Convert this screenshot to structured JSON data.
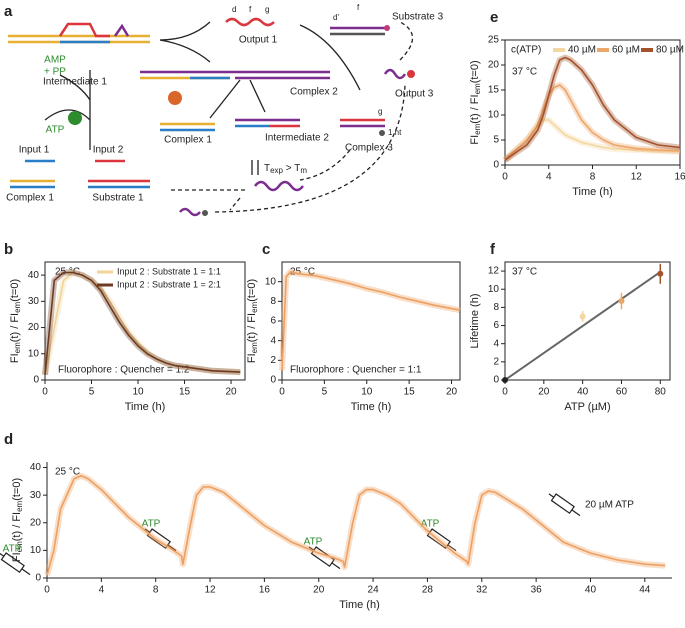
{
  "diagram": {
    "label": "a",
    "labels": [
      "Intermediate 1",
      "Output 1",
      "d",
      "f",
      "g",
      "Substrate 3",
      "d'",
      "f",
      "Output 3",
      "Complex 2",
      "AMP",
      "+ PP",
      "ATP",
      "Complex 1",
      "Intermediate 2",
      "Complex 3",
      "g",
      "1 nt",
      "Input 1",
      "Input 2",
      "Complex 1",
      "Substrate 1"
    ],
    "temperature_parts": [
      "T",
      "exp",
      " > T",
      "m"
    ]
  },
  "chart_data": [
    {
      "type": "line",
      "label": "b",
      "xlabel": "Time (h)",
      "ylabel_parts": [
        "FI",
        "em",
        "(t) / FI",
        "em",
        "(t=0)"
      ],
      "annotations": [
        "25 °C",
        "Fluorophore : Quencher = 1:2"
      ],
      "x": [
        0,
        1,
        2,
        3,
        4,
        5,
        6,
        7,
        8,
        9,
        10,
        11,
        12,
        13,
        14,
        16,
        18,
        21
      ],
      "series": [
        {
          "name": "Input 2 : Substrate 1 = 1:1",
          "color": "#f0d49a",
          "values": [
            2,
            20,
            38,
            41,
            40,
            38,
            35,
            30,
            24,
            18,
            14,
            10.5,
            8,
            6.5,
            5.5,
            4.5,
            3.5,
            3
          ]
        },
        {
          "name": "Input 2 : Substrate 1 = 2:1",
          "color": "#6e3b22",
          "values": [
            2,
            38,
            41,
            41,
            40,
            38,
            34,
            28,
            22,
            17,
            13,
            10,
            8,
            6.5,
            5.5,
            4.5,
            3.5,
            3
          ]
        }
      ],
      "xlim": [
        0,
        21.5
      ],
      "xticks": [
        0,
        5,
        10,
        15,
        20
      ],
      "ylim": [
        0,
        45
      ],
      "yticks": [
        0,
        10,
        20,
        30,
        40
      ],
      "legend": "upper right"
    },
    {
      "type": "line",
      "label": "c",
      "xlabel": "Time (h)",
      "ylabel_parts": [
        "FI",
        "em",
        "(t) / FI",
        "em",
        "(t=0)"
      ],
      "annotations": [
        "25 °C",
        "Fluorophore : Quencher = 1:1"
      ],
      "x": [
        0,
        0.5,
        1,
        2,
        4,
        6,
        8,
        10,
        12,
        14,
        16,
        18,
        21
      ],
      "values": [
        1,
        10.5,
        11,
        10.8,
        10.6,
        10.2,
        9.8,
        9.3,
        8.9,
        8.4,
        8.0,
        7.6,
        7.1
      ],
      "color": "#eea062",
      "xlim": [
        0,
        21
      ],
      "xticks": [
        0,
        5,
        10,
        15,
        20
      ],
      "ylim": [
        0,
        12
      ],
      "yticks": [
        0,
        2,
        4,
        6,
        8,
        10
      ]
    },
    {
      "type": "line",
      "label": "d",
      "xlabel": "Time (h)",
      "ylabel_parts": [
        "FI",
        "em",
        "(t) / FI",
        "em",
        "(t=0)"
      ],
      "annotations": [
        "25 °C",
        "ATP",
        "ATP",
        "ATP",
        "ATP",
        "20 µM ATP"
      ],
      "x": [
        0,
        0.5,
        1,
        2,
        2.5,
        3,
        4,
        5,
        6,
        7,
        8,
        9,
        9.9,
        10,
        10.5,
        11,
        11.5,
        12,
        13,
        14,
        15,
        16,
        17,
        18,
        19,
        20,
        21,
        21.8,
        21.9,
        22.5,
        23,
        23.5,
        24,
        25,
        26,
        27,
        28,
        29,
        30,
        30.9,
        31,
        31.5,
        32,
        32.5,
        33,
        34,
        35,
        36,
        37,
        38,
        40,
        42,
        44,
        45.5
      ],
      "values": [
        1,
        10,
        25,
        36,
        37,
        36,
        32,
        27,
        22,
        18,
        14,
        11,
        8,
        5,
        18,
        30,
        33,
        33,
        31,
        27,
        23,
        19,
        16,
        13,
        11,
        9,
        7.5,
        6,
        4,
        20,
        30,
        32,
        32,
        30,
        27,
        22,
        17,
        13,
        9,
        6,
        5,
        20,
        30,
        31.5,
        31,
        28,
        25,
        21,
        17,
        13,
        9,
        6.5,
        5,
        4.5
      ],
      "color": "#eea062",
      "xlim": [
        0,
        46
      ],
      "xticks": [
        0,
        4,
        8,
        12,
        16,
        20,
        24,
        28,
        32,
        36,
        40,
        44
      ],
      "ylim": [
        0,
        42
      ],
      "yticks": [
        0,
        10,
        20,
        30,
        40
      ]
    },
    {
      "type": "line",
      "label": "e",
      "xlabel": "Time (h)",
      "ylabel_parts": [
        "FI",
        "em",
        "(t) / FI",
        "em",
        "(t=0)"
      ],
      "annotations": [
        "37 °C"
      ],
      "legend_title": "c(ATP)",
      "x": [
        0,
        1,
        2,
        3,
        3.5,
        4,
        4.5,
        5,
        5.5,
        6,
        7,
        8,
        9,
        10,
        12,
        14,
        16
      ],
      "series": [
        {
          "name": "40 µM",
          "color": "#f3d7a0",
          "values": [
            1,
            3,
            5,
            8,
            9,
            9,
            8,
            7,
            6,
            5.5,
            4.5,
            4,
            3.5,
            3.2,
            3,
            2.8,
            2.7
          ]
        },
        {
          "name": "60 µM",
          "color": "#eda66a",
          "values": [
            1,
            3,
            5,
            8,
            11,
            14,
            15.5,
            16,
            15,
            13,
            9,
            6.5,
            5,
            4,
            3.3,
            3,
            2.8
          ]
        },
        {
          "name": "80 µM",
          "color": "#a4522a",
          "values": [
            1,
            2.5,
            4,
            7,
            10,
            14,
            18,
            21,
            21.5,
            21,
            19,
            16,
            12,
            9,
            5.5,
            4,
            3.5
          ]
        }
      ],
      "xlim": [
        0,
        16
      ],
      "xticks": [
        0,
        4,
        8,
        12,
        16
      ],
      "ylim": [
        0,
        25
      ],
      "yticks": [
        0,
        5,
        10,
        15,
        20,
        25
      ],
      "legend": "top"
    },
    {
      "type": "scatter",
      "label": "f",
      "xlabel": "ATP (µM)",
      "ylabel_parts": [
        "Lifetime (h)"
      ],
      "annotations": [
        "37 °C"
      ],
      "x": [
        0,
        40,
        60,
        80
      ],
      "values": [
        0,
        7,
        8.7,
        11.7
      ],
      "errors": [
        0,
        0.6,
        0.9,
        1.1
      ],
      "point_colors": [
        "#222222",
        "#f3d7a0",
        "#eda66a",
        "#a4522a"
      ],
      "fit": {
        "x": [
          0,
          80
        ],
        "values": [
          0,
          11.9
        ],
        "color": "#666666"
      },
      "xlim": [
        0,
        85
      ],
      "xticks": [
        0,
        20,
        40,
        60,
        80
      ],
      "ylim": [
        0,
        13
      ],
      "yticks": [
        0,
        2,
        4,
        6,
        8,
        10,
        12
      ]
    }
  ]
}
